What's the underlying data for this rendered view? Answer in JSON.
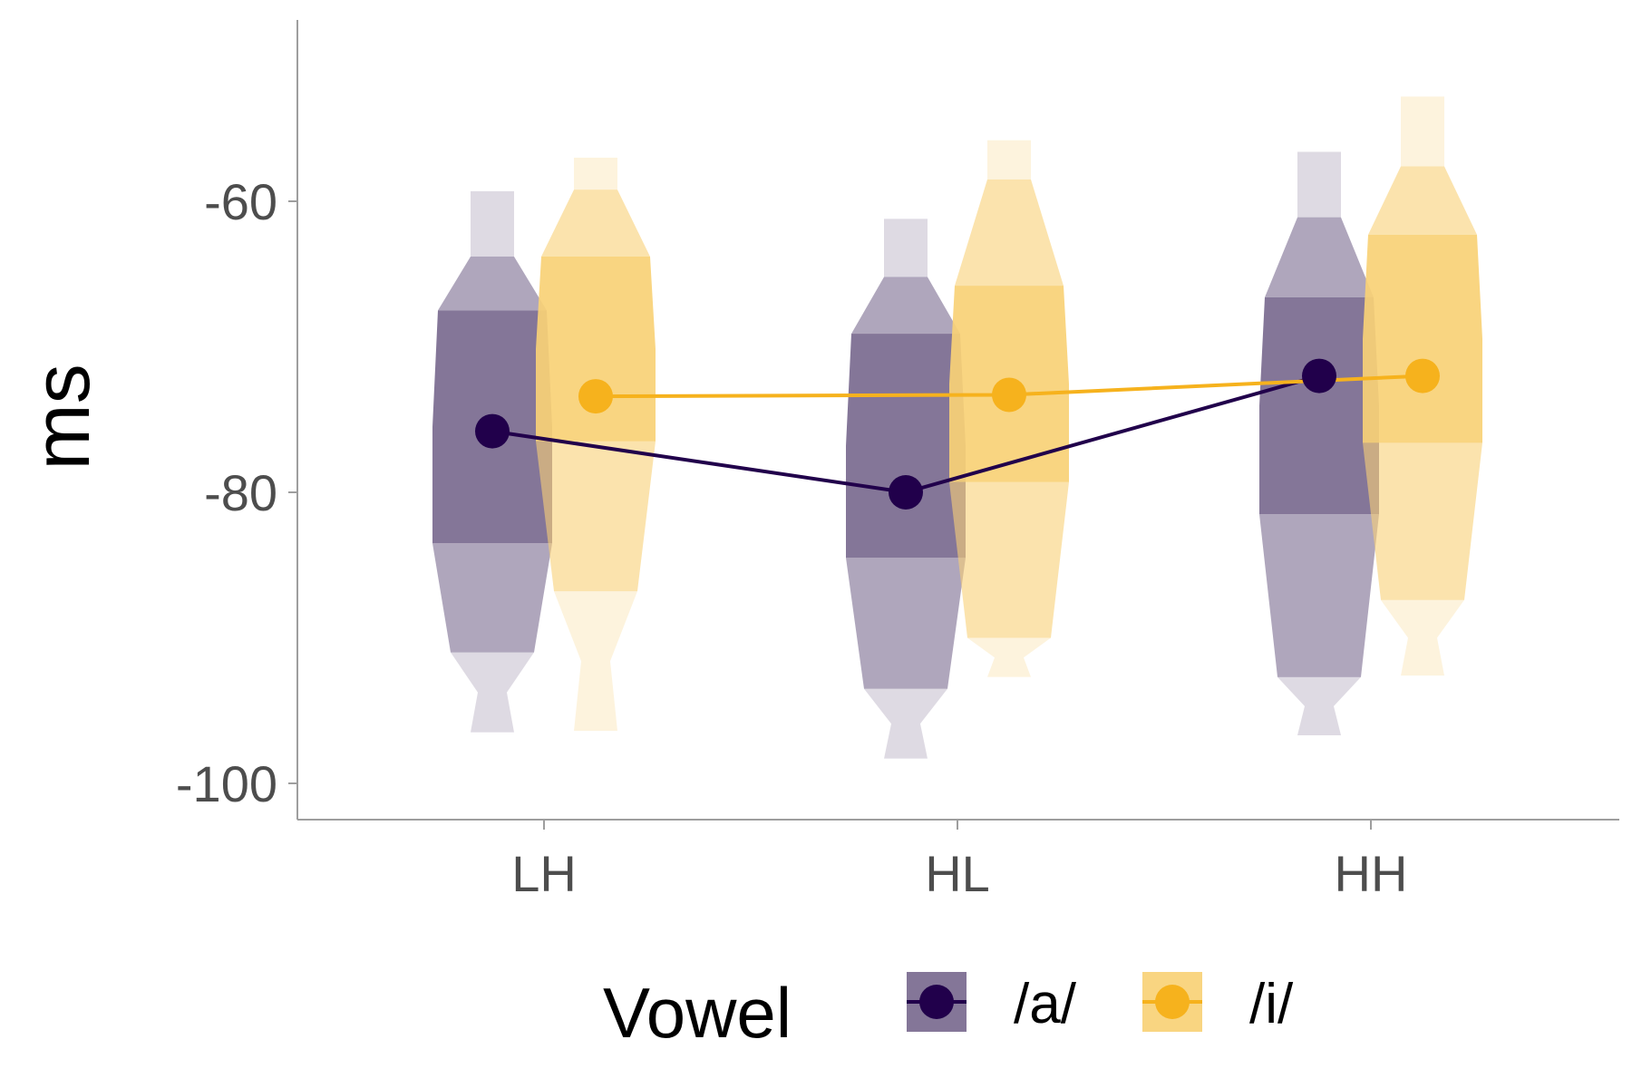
{
  "chart_data": {
    "type": "violin",
    "ylabel": "ms",
    "xlabel": "",
    "title": "",
    "ylim": [
      -102.5,
      -47
    ],
    "yticks": [
      -60,
      -80,
      -100
    ],
    "ytick_labels": [
      "-60",
      "-80",
      "-100"
    ],
    "categories": [
      "LH",
      "HL",
      "HH"
    ],
    "grid": false,
    "legend": {
      "title": "Vowel",
      "placement": "bottom"
    },
    "series": [
      {
        "name": "/a/",
        "color": "#21004b",
        "fill": "#7a6a8f",
        "means": [
          -75.8,
          -80.0,
          -72.0
        ],
        "distributions": [
          {
            "bands": [
              -96.5,
              -91,
              -83.5,
              -67.5,
              -63.8,
              -59.3
            ],
            "widths": [
              0.0,
              0.08,
              0.23,
              0.33,
              0.33,
              0.3,
              0.12,
              0.0
            ]
          },
          {
            "bands": [
              -98.3,
              -93.5,
              -84.5,
              -69.1,
              -65.2,
              -61.2
            ],
            "widths": [
              0.0,
              0.08,
              0.23,
              0.33,
              0.33,
              0.3,
              0.12,
              0.0
            ]
          },
          {
            "bands": [
              -96.7,
              -92.7,
              -81.5,
              -66.6,
              -61.1,
              -56.6
            ],
            "widths": [
              0.0,
              0.08,
              0.23,
              0.33,
              0.33,
              0.3,
              0.12,
              0.0
            ]
          }
        ]
      },
      {
        "name": "/i/",
        "color": "#f6b21d",
        "fill": "#f9d176",
        "means": [
          -73.4,
          -73.3,
          -72.0
        ],
        "distributions": [
          {
            "bands": [
              -96.4,
              -86.8,
              -76.5,
              -63.8,
              -59.2,
              -57.0
            ],
            "widths": [
              0.0,
              0.08,
              0.23,
              0.33,
              0.33,
              0.3,
              0.12,
              0.0
            ]
          },
          {
            "bands": [
              -92.7,
              -90.0,
              -79.3,
              -65.8,
              -58.5,
              -55.8
            ],
            "widths": [
              0.0,
              0.08,
              0.23,
              0.33,
              0.33,
              0.3,
              0.12,
              0.0
            ]
          },
          {
            "bands": [
              -92.6,
              -87.4,
              -76.6,
              -62.3,
              -57.6,
              -52.8
            ],
            "widths": [
              0.0,
              0.08,
              0.23,
              0.33,
              0.33,
              0.3,
              0.12,
              0.0
            ]
          }
        ]
      }
    ]
  }
}
